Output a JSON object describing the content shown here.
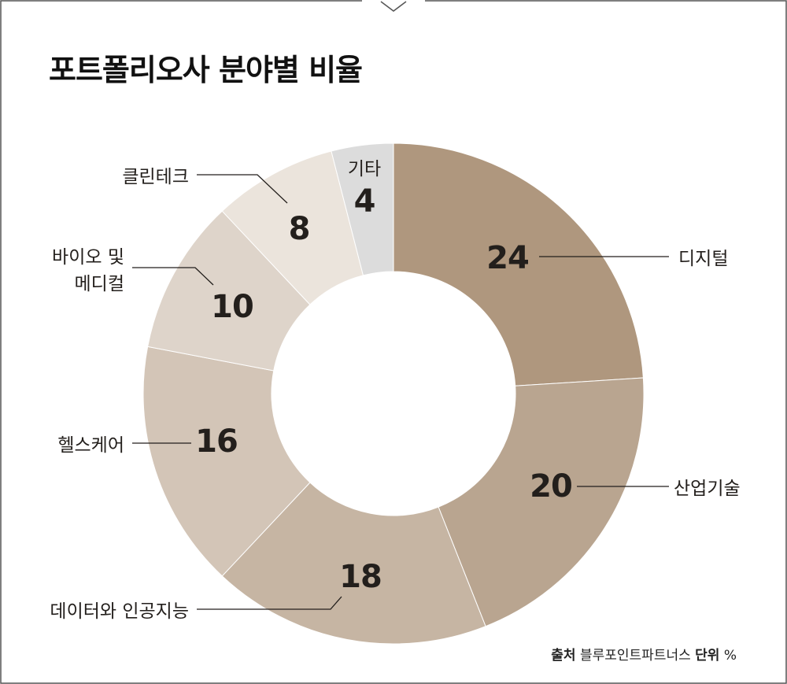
{
  "chart_data": {
    "type": "pie",
    "donut": true,
    "title": "포트폴리오사 분야별 비율",
    "unit": "%",
    "slices": [
      {
        "label": "디지털",
        "value": 24,
        "color": "#af977e"
      },
      {
        "label": "산업기술",
        "value": 20,
        "color": "#b9a590"
      },
      {
        "label": "데이터와 인공지능",
        "value": 18,
        "color": "#c6b5a3"
      },
      {
        "label": "헬스케어",
        "value": 16,
        "color": "#d3c5b7"
      },
      {
        "label": "바이오 및 메디컬",
        "value": 10,
        "color": "#ded4ca"
      },
      {
        "label": "클린테크",
        "value": 8,
        "color": "#ebe4dc"
      },
      {
        "label": "기타",
        "value": 4,
        "color": "#dcdcdc"
      }
    ]
  },
  "source": {
    "source_label": "출처",
    "source_value": "블루포인트파트너스",
    "unit_label": "단위",
    "unit_value": "%"
  }
}
